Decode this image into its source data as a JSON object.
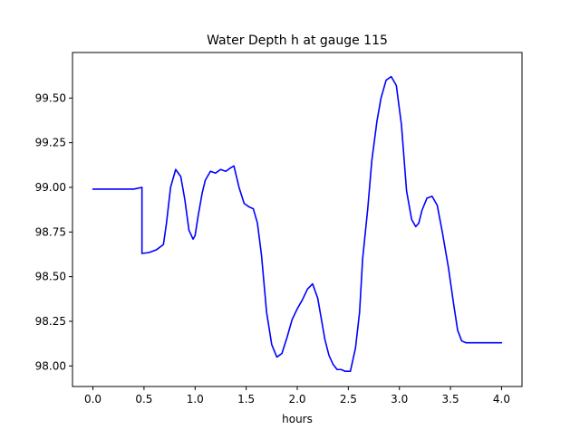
{
  "chart_data": {
    "type": "line",
    "title": "Water Depth h at gauge 115",
    "xlabel": "hours",
    "ylabel": "",
    "xlim": [
      -0.2,
      4.2
    ],
    "ylim": [
      97.885,
      99.755
    ],
    "xticks": [
      0.0,
      0.5,
      1.0,
      1.5,
      2.0,
      2.5,
      3.0,
      3.5,
      4.0
    ],
    "xtick_labels": [
      "0.0",
      "0.5",
      "1.0",
      "1.5",
      "2.0",
      "2.5",
      "3.0",
      "3.5",
      "4.0"
    ],
    "yticks": [
      98.0,
      98.25,
      98.5,
      98.75,
      99.0,
      99.25,
      99.5
    ],
    "ytick_labels": [
      "98.00",
      "98.25",
      "98.50",
      "98.75",
      "99.00",
      "99.25",
      "99.50"
    ],
    "grid": false,
    "legend": "none",
    "series": [
      {
        "color": "#0000ff",
        "x": [
          0.0,
          0.2,
          0.4,
          0.48,
          0.48,
          0.55,
          0.62,
          0.69,
          0.72,
          0.76,
          0.81,
          0.86,
          0.9,
          0.94,
          0.98,
          1.0,
          1.03,
          1.07,
          1.1,
          1.15,
          1.2,
          1.25,
          1.3,
          1.35,
          1.38,
          1.43,
          1.48,
          1.53,
          1.57,
          1.61,
          1.65,
          1.7,
          1.75,
          1.8,
          1.85,
          1.9,
          1.95,
          2.0,
          2.05,
          2.1,
          2.15,
          2.2,
          2.24,
          2.27,
          2.31,
          2.35,
          2.39,
          2.43,
          2.47,
          2.52,
          2.57,
          2.61,
          2.64,
          2.69,
          2.73,
          2.78,
          2.82,
          2.87,
          2.92,
          2.97,
          3.02,
          3.07,
          3.12,
          3.16,
          3.19,
          3.22,
          3.27,
          3.32,
          3.37,
          3.42,
          3.48,
          3.53,
          3.57,
          3.61,
          3.65,
          3.7,
          3.75,
          3.8,
          3.85,
          3.9,
          3.95,
          4.0
        ],
        "y": [
          98.99,
          98.99,
          98.99,
          99.0,
          98.63,
          98.635,
          98.65,
          98.68,
          98.8,
          99.0,
          99.1,
          99.06,
          98.93,
          98.76,
          98.71,
          98.73,
          98.84,
          98.97,
          99.04,
          99.09,
          99.08,
          99.1,
          99.09,
          99.11,
          99.12,
          99.0,
          98.91,
          98.89,
          98.88,
          98.8,
          98.62,
          98.3,
          98.12,
          98.05,
          98.07,
          98.16,
          98.26,
          98.32,
          98.37,
          98.43,
          98.46,
          98.38,
          98.25,
          98.15,
          98.06,
          98.01,
          97.98,
          97.98,
          97.97,
          97.97,
          98.1,
          98.3,
          98.6,
          98.88,
          99.15,
          99.37,
          99.5,
          99.6,
          99.62,
          99.57,
          99.35,
          98.98,
          98.82,
          98.78,
          98.8,
          98.87,
          98.94,
          98.95,
          98.9,
          98.75,
          98.55,
          98.35,
          98.2,
          98.14,
          98.13,
          98.13,
          98.13,
          98.13,
          98.13,
          98.13,
          98.13,
          98.13
        ]
      }
    ]
  }
}
